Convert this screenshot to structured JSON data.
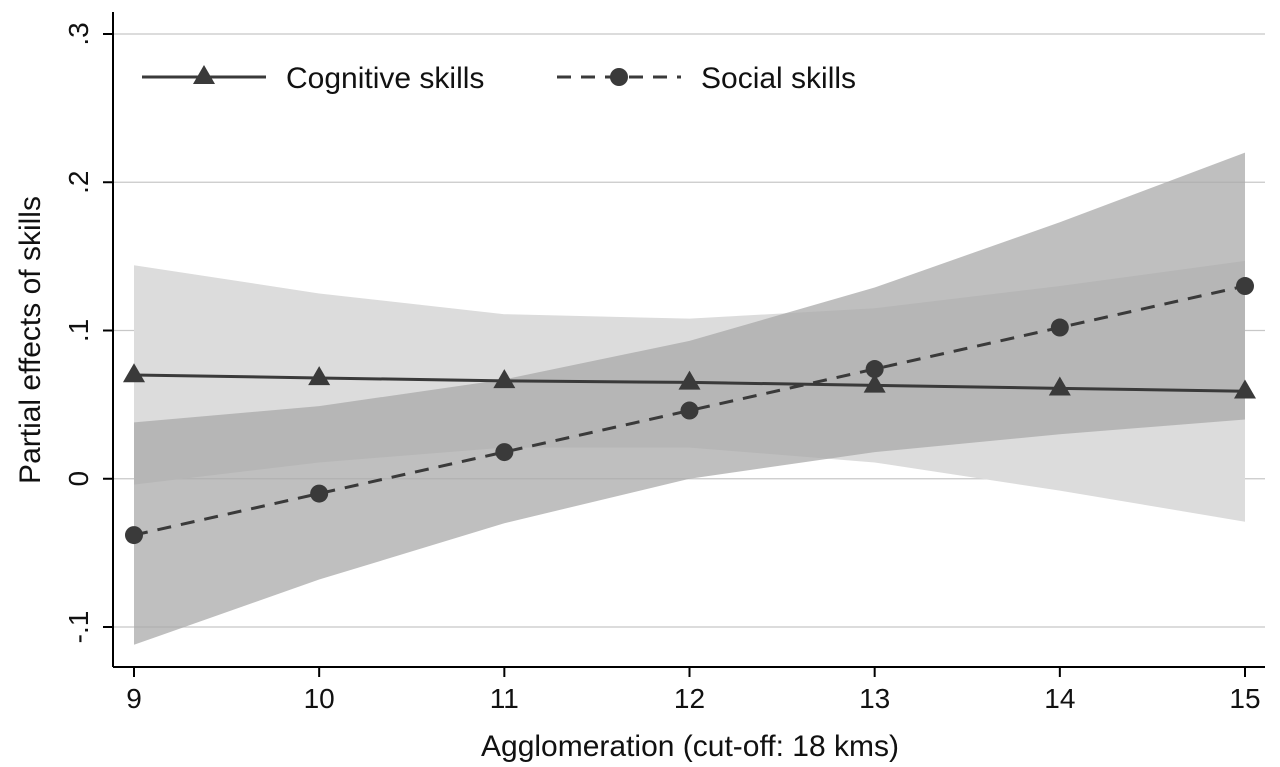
{
  "chart_data": {
    "type": "line",
    "title": "",
    "xlabel": "Agglomeration (cut-off: 18 kms)",
    "ylabel": "Partial effects of skills",
    "xlim": [
      9,
      15
    ],
    "ylim": [
      -0.1,
      0.3
    ],
    "x": [
      9,
      10,
      11,
      12,
      13,
      14,
      15
    ],
    "x_tick_labels": [
      "9",
      "10",
      "11",
      "12",
      "13",
      "14",
      "15"
    ],
    "y_ticks": [
      -0.1,
      0,
      0.1,
      0.2,
      0.3
    ],
    "y_tick_labels": [
      "-.1",
      "0",
      ".1",
      ".2",
      ".3"
    ],
    "grid": "horizontal",
    "legend": "top",
    "series": [
      {
        "name": "Cognitive skills",
        "marker": "triangle",
        "line_style": "solid",
        "values": [
          0.07,
          0.068,
          0.066,
          0.065,
          0.063,
          0.061,
          0.059
        ],
        "ci_lower": [
          -0.004,
          0.011,
          0.021,
          0.021,
          0.011,
          -0.008,
          -0.029
        ],
        "ci_upper": [
          0.144,
          0.125,
          0.111,
          0.108,
          0.115,
          0.13,
          0.147
        ],
        "band_color": "#dcdcdc"
      },
      {
        "name": "Social skills",
        "marker": "circle",
        "line_style": "dashed",
        "values": [
          -0.038,
          -0.01,
          0.018,
          0.046,
          0.074,
          0.102,
          0.13
        ],
        "ci_lower": [
          -0.112,
          -0.068,
          -0.03,
          0.0,
          0.018,
          0.03,
          0.04
        ],
        "ci_upper": [
          0.038,
          0.049,
          0.067,
          0.093,
          0.129,
          0.173,
          0.22
        ],
        "band_color": "#aaaaaa"
      }
    ],
    "colors": {
      "line": "#3a3a3a",
      "marker": "#3a3a3a",
      "grid": "#c8c8c8",
      "axis": "#000000",
      "overlap_band": "#a6a6a6"
    }
  }
}
